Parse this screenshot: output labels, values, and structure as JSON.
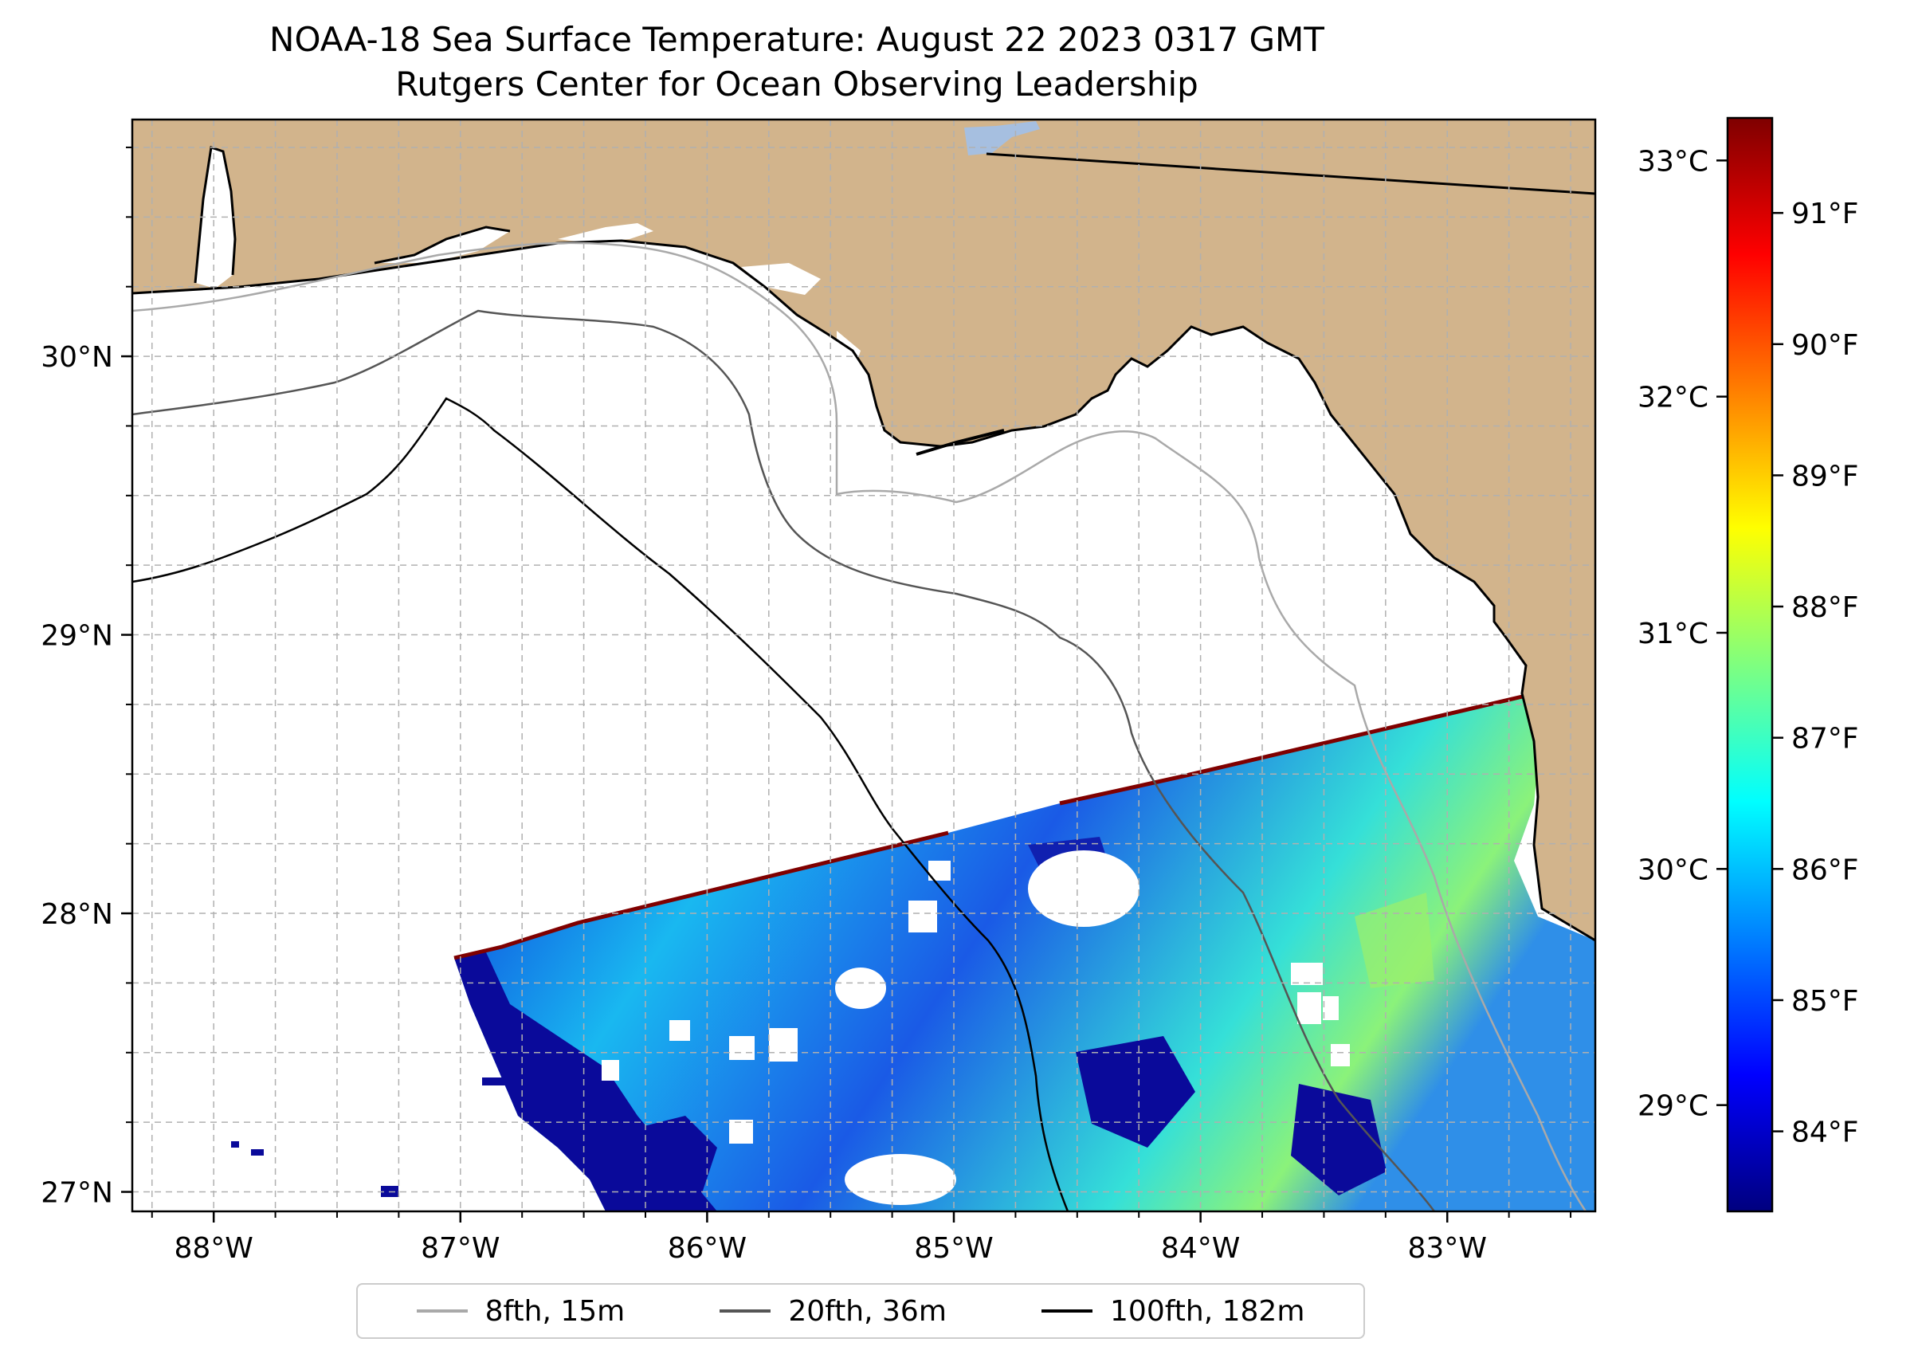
{
  "title": {
    "line1": "NOAA-18 Sea Surface Temperature: August 22 2023 0317 GMT",
    "line2": "Rutgers Center for Ocean Observing Leadership"
  },
  "map": {
    "lon_range": [
      -88.33,
      -82.4
    ],
    "lat_range": [
      26.93,
      30.85
    ],
    "lon_ticks": [
      {
        "value": -88,
        "label": "88°W"
      },
      {
        "value": -87,
        "label": "87°W"
      },
      {
        "value": -86,
        "label": "86°W"
      },
      {
        "value": -85,
        "label": "85°W"
      },
      {
        "value": -84,
        "label": "84°W"
      },
      {
        "value": -83,
        "label": "83°W"
      }
    ],
    "lat_ticks": [
      {
        "value": 30,
        "label": "30°N"
      },
      {
        "value": 29,
        "label": "29°N"
      },
      {
        "value": 28,
        "label": "28°N"
      },
      {
        "value": 27,
        "label": "27°N"
      }
    ],
    "colors": {
      "land": "#d2b48c",
      "ocean": "#ffffff",
      "lake": "#a6bfe0",
      "grid": "#b0b0b0"
    }
  },
  "colorbar": {
    "colormap": "jet",
    "celsius_ticks": [
      "33°C",
      "32°C",
      "31°C",
      "30°C",
      "29°C"
    ],
    "fahrenheit_ticks": [
      "91°F",
      "90°F",
      "89°F",
      "88°F",
      "87°F",
      "86°F",
      "85°F",
      "84°F"
    ]
  },
  "legend": {
    "items": [
      {
        "label": "8fth, 15m",
        "color": "#a9a9a9"
      },
      {
        "label": "20fth, 36m",
        "color": "#555555"
      },
      {
        "label": "100fth, 182m",
        "color": "#000000"
      }
    ]
  }
}
